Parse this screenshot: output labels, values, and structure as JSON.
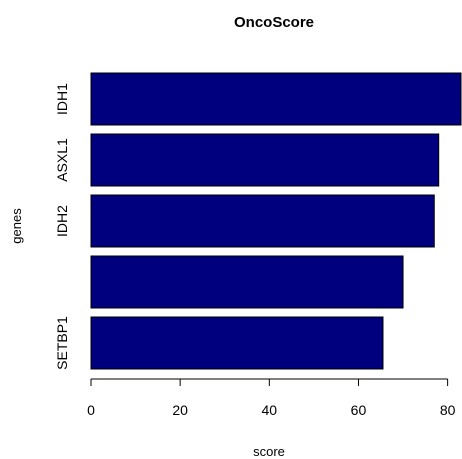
{
  "chart_data": {
    "type": "bar",
    "orientation": "horizontal",
    "title": "OncoScore",
    "xlabel": "score",
    "ylabel": "genes",
    "categories": [
      "IDH1",
      "ASXL1",
      "IDH2",
      "",
      "SETBP1"
    ],
    "values": [
      83,
      78,
      77,
      70,
      65.5
    ],
    "xlim": [
      0,
      83
    ],
    "xticks": [
      0,
      20,
      40,
      60,
      80
    ],
    "bar_color": "#00007F",
    "grid": false,
    "legend": "none"
  }
}
